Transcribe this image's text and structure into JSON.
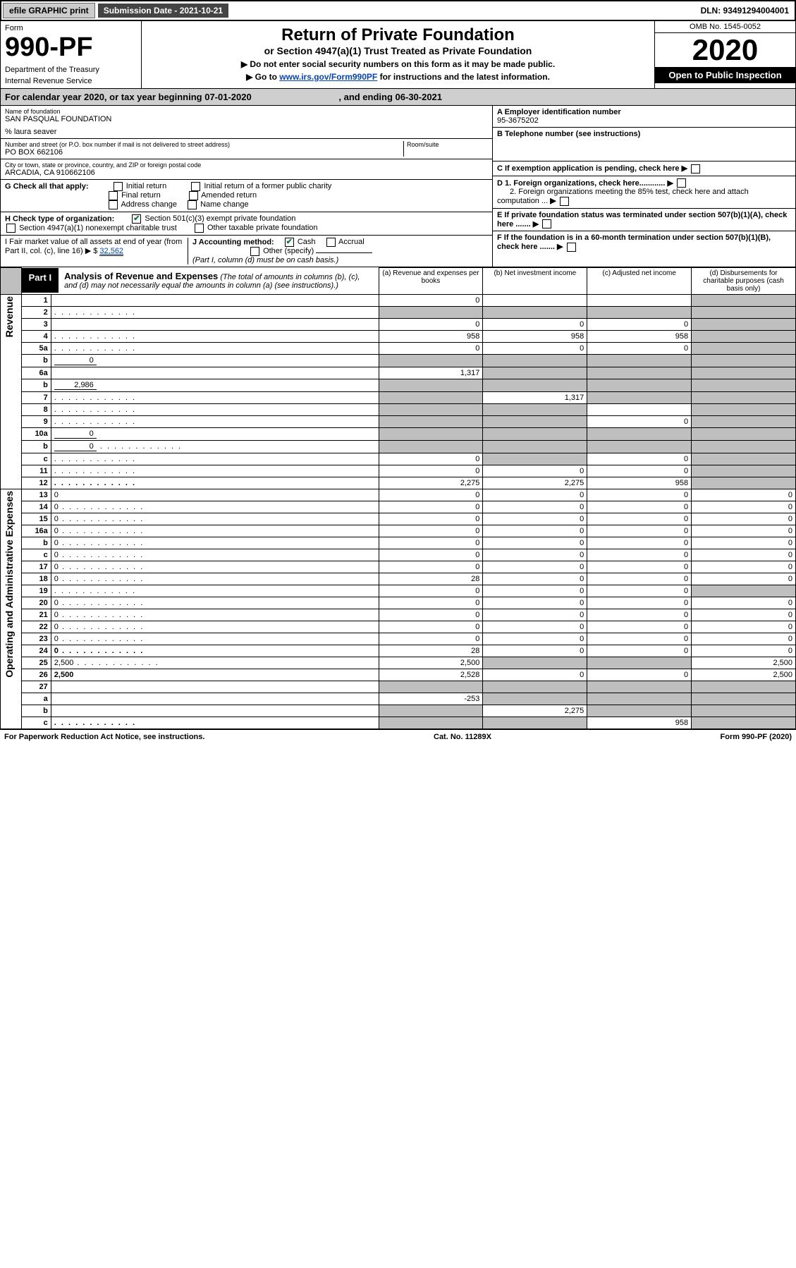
{
  "top": {
    "efile": "efile GRAPHIC print",
    "submission_label": "Submission Date - 2021-10-21",
    "dln_label": "DLN: 93491294004001"
  },
  "header": {
    "form_label": "Form",
    "form_num": "990-PF",
    "dept1": "Department of the Treasury",
    "dept2": "Internal Revenue Service",
    "title": "Return of Private Foundation",
    "subtitle": "or Section 4947(a)(1) Trust Treated as Private Foundation",
    "note1": "▶ Do not enter social security numbers on this form as it may be made public.",
    "note2_pre": "▶ Go to ",
    "note2_link": "www.irs.gov/Form990PF",
    "note2_post": " for instructions and the latest information.",
    "omb": "OMB No. 1545-0052",
    "year": "2020",
    "inspect": "Open to Public Inspection"
  },
  "cal": {
    "text1": "For calendar year 2020, or tax year beginning 07-01-2020",
    "text2": ", and ending 06-30-2021"
  },
  "entity": {
    "name_label": "Name of foundation",
    "name": "SAN PASQUAL FOUNDATION",
    "care_of": "% laura seaver",
    "addr_label": "Number and street (or P.O. box number if mail is not delivered to street address)",
    "addr": "PO BOX 662106",
    "room_label": "Room/suite",
    "city_label": "City or town, state or province, country, and ZIP or foreign postal code",
    "city": "ARCADIA, CA  910662106",
    "ein_label": "A Employer identification number",
    "ein": "95-3675202",
    "phone_label": "B Telephone number (see instructions)",
    "c_label": "C If exemption application is pending, check here",
    "d1_label": "D 1. Foreign organizations, check here............",
    "d2_label": "2. Foreign organizations meeting the 85% test, check here and attach computation ...",
    "e_label": "E If private foundation status was terminated under section 507(b)(1)(A), check here .......",
    "f_label": "F If the foundation is in a 60-month termination under section 507(b)(1)(B), check here .......",
    "g_label": "G Check all that apply:",
    "g_initial": "Initial return",
    "g_initial_former": "Initial return of a former public charity",
    "g_final": "Final return",
    "g_amended": "Amended return",
    "g_address": "Address change",
    "g_name": "Name change",
    "h_label": "H Check type of organization:",
    "h_501c3": "Section 501(c)(3) exempt private foundation",
    "h_4947": "Section 4947(a)(1) nonexempt charitable trust",
    "h_other": "Other taxable private foundation",
    "i_label": "I Fair market value of all assets at end of year (from Part II, col. (c), line 16) ▶ $",
    "i_value": "32,562",
    "j_label": "J Accounting method:",
    "j_cash": "Cash",
    "j_accrual": "Accrual",
    "j_other": "Other (specify)",
    "j_note": "(Part I, column (d) must be on cash basis.)"
  },
  "part1": {
    "label": "Part I",
    "title": "Analysis of Revenue and Expenses",
    "title_note": "(The total of amounts in columns (b), (c), and (d) may not necessarily equal the amounts in column (a) (see instructions).)",
    "col_a": "(a) Revenue and expenses per books",
    "col_b": "(b) Net investment income",
    "col_c": "(c) Adjusted net income",
    "col_d": "(d) Disbursements for charitable purposes (cash basis only)",
    "side_rev": "Revenue",
    "side_exp": "Operating and Administrative Expenses"
  },
  "rows": [
    {
      "n": "1",
      "d": "",
      "a": "0",
      "b": "",
      "c": "",
      "dgrey": true
    },
    {
      "n": "2",
      "d": "",
      "dots": true,
      "a": "",
      "b": "",
      "c": "",
      "allgrey": true
    },
    {
      "n": "3",
      "d": "",
      "a": "0",
      "b": "0",
      "c": "0",
      "dgrey": true
    },
    {
      "n": "4",
      "d": "",
      "dots": true,
      "a": "958",
      "b": "958",
      "c": "958",
      "dgrey": true
    },
    {
      "n": "5a",
      "d": "",
      "dots": true,
      "a": "0",
      "b": "0",
      "c": "0",
      "dgrey": true
    },
    {
      "n": "b",
      "d": "",
      "inline": "0",
      "a": "",
      "b": "",
      "c": "",
      "allgrey": true
    },
    {
      "n": "6a",
      "d": "",
      "a": "1,317",
      "b": "",
      "c": "",
      "bcdgrey": true
    },
    {
      "n": "b",
      "d": "",
      "inline": "2,986",
      "a": "",
      "b": "",
      "c": "",
      "allgrey": true
    },
    {
      "n": "7",
      "d": "",
      "dots": true,
      "a": "",
      "b": "1,317",
      "c": "",
      "agrey": true,
      "cdgrey": true
    },
    {
      "n": "8",
      "d": "",
      "dots": true,
      "a": "",
      "b": "",
      "c": "",
      "abgrey": true,
      "dgrey": true
    },
    {
      "n": "9",
      "d": "",
      "dots": true,
      "a": "",
      "b": "",
      "c": "0",
      "abgrey": true,
      "dgrey": true
    },
    {
      "n": "10a",
      "d": "",
      "inline": "0",
      "a": "",
      "b": "",
      "c": "",
      "allgrey": true
    },
    {
      "n": "b",
      "d": "",
      "dots": true,
      "inline": "0",
      "a": "",
      "b": "",
      "c": "",
      "allgrey": true
    },
    {
      "n": "c",
      "d": "",
      "dots": true,
      "a": "0",
      "b": "",
      "c": "0",
      "bgrey": true,
      "dgrey": true
    },
    {
      "n": "11",
      "d": "",
      "dots": true,
      "a": "0",
      "b": "0",
      "c": "0",
      "dgrey": true
    },
    {
      "n": "12",
      "d": "",
      "dots": true,
      "bold": true,
      "a": "2,275",
      "b": "2,275",
      "c": "958",
      "dgrey": true
    },
    {
      "n": "13",
      "d": "0",
      "a": "0",
      "b": "0",
      "c": "0"
    },
    {
      "n": "14",
      "d": "0",
      "dots": true,
      "a": "0",
      "b": "0",
      "c": "0"
    },
    {
      "n": "15",
      "d": "0",
      "dots": true,
      "a": "0",
      "b": "0",
      "c": "0"
    },
    {
      "n": "16a",
      "d": "0",
      "dots": true,
      "a": "0",
      "b": "0",
      "c": "0"
    },
    {
      "n": "b",
      "d": "0",
      "dots": true,
      "a": "0",
      "b": "0",
      "c": "0"
    },
    {
      "n": "c",
      "d": "0",
      "dots": true,
      "a": "0",
      "b": "0",
      "c": "0"
    },
    {
      "n": "17",
      "d": "0",
      "dots": true,
      "a": "0",
      "b": "0",
      "c": "0"
    },
    {
      "n": "18",
      "d": "0",
      "dots": true,
      "a": "28",
      "b": "0",
      "c": "0"
    },
    {
      "n": "19",
      "d": "",
      "dots": true,
      "a": "0",
      "b": "0",
      "c": "0",
      "dgrey": true
    },
    {
      "n": "20",
      "d": "0",
      "dots": true,
      "a": "0",
      "b": "0",
      "c": "0"
    },
    {
      "n": "21",
      "d": "0",
      "dots": true,
      "a": "0",
      "b": "0",
      "c": "0"
    },
    {
      "n": "22",
      "d": "0",
      "dots": true,
      "a": "0",
      "b": "0",
      "c": "0"
    },
    {
      "n": "23",
      "d": "0",
      "dots": true,
      "a": "0",
      "b": "0",
      "c": "0"
    },
    {
      "n": "24",
      "d": "0",
      "dots": true,
      "bold": true,
      "a": "28",
      "b": "0",
      "c": "0"
    },
    {
      "n": "25",
      "d": "2,500",
      "dots": true,
      "a": "2,500",
      "b": "",
      "c": "",
      "bcgrey": true
    },
    {
      "n": "26",
      "d": "2,500",
      "bold": true,
      "a": "2,528",
      "b": "0",
      "c": "0"
    },
    {
      "n": "27",
      "d": "",
      "a": "",
      "b": "",
      "c": "",
      "allgrey": true
    },
    {
      "n": "a",
      "d": "",
      "bold": true,
      "a": "-253",
      "b": "",
      "c": "",
      "bcdgrey": true
    },
    {
      "n": "b",
      "d": "",
      "bold": true,
      "a": "",
      "b": "2,275",
      "c": "",
      "agrey": true,
      "cdgrey": true
    },
    {
      "n": "c",
      "d": "",
      "dots": true,
      "bold": true,
      "a": "",
      "b": "",
      "c": "958",
      "abgrey": true,
      "dgrey": true
    }
  ],
  "footer": {
    "left": "For Paperwork Reduction Act Notice, see instructions.",
    "center": "Cat. No. 11289X",
    "right": "Form 990-PF (2020)"
  }
}
